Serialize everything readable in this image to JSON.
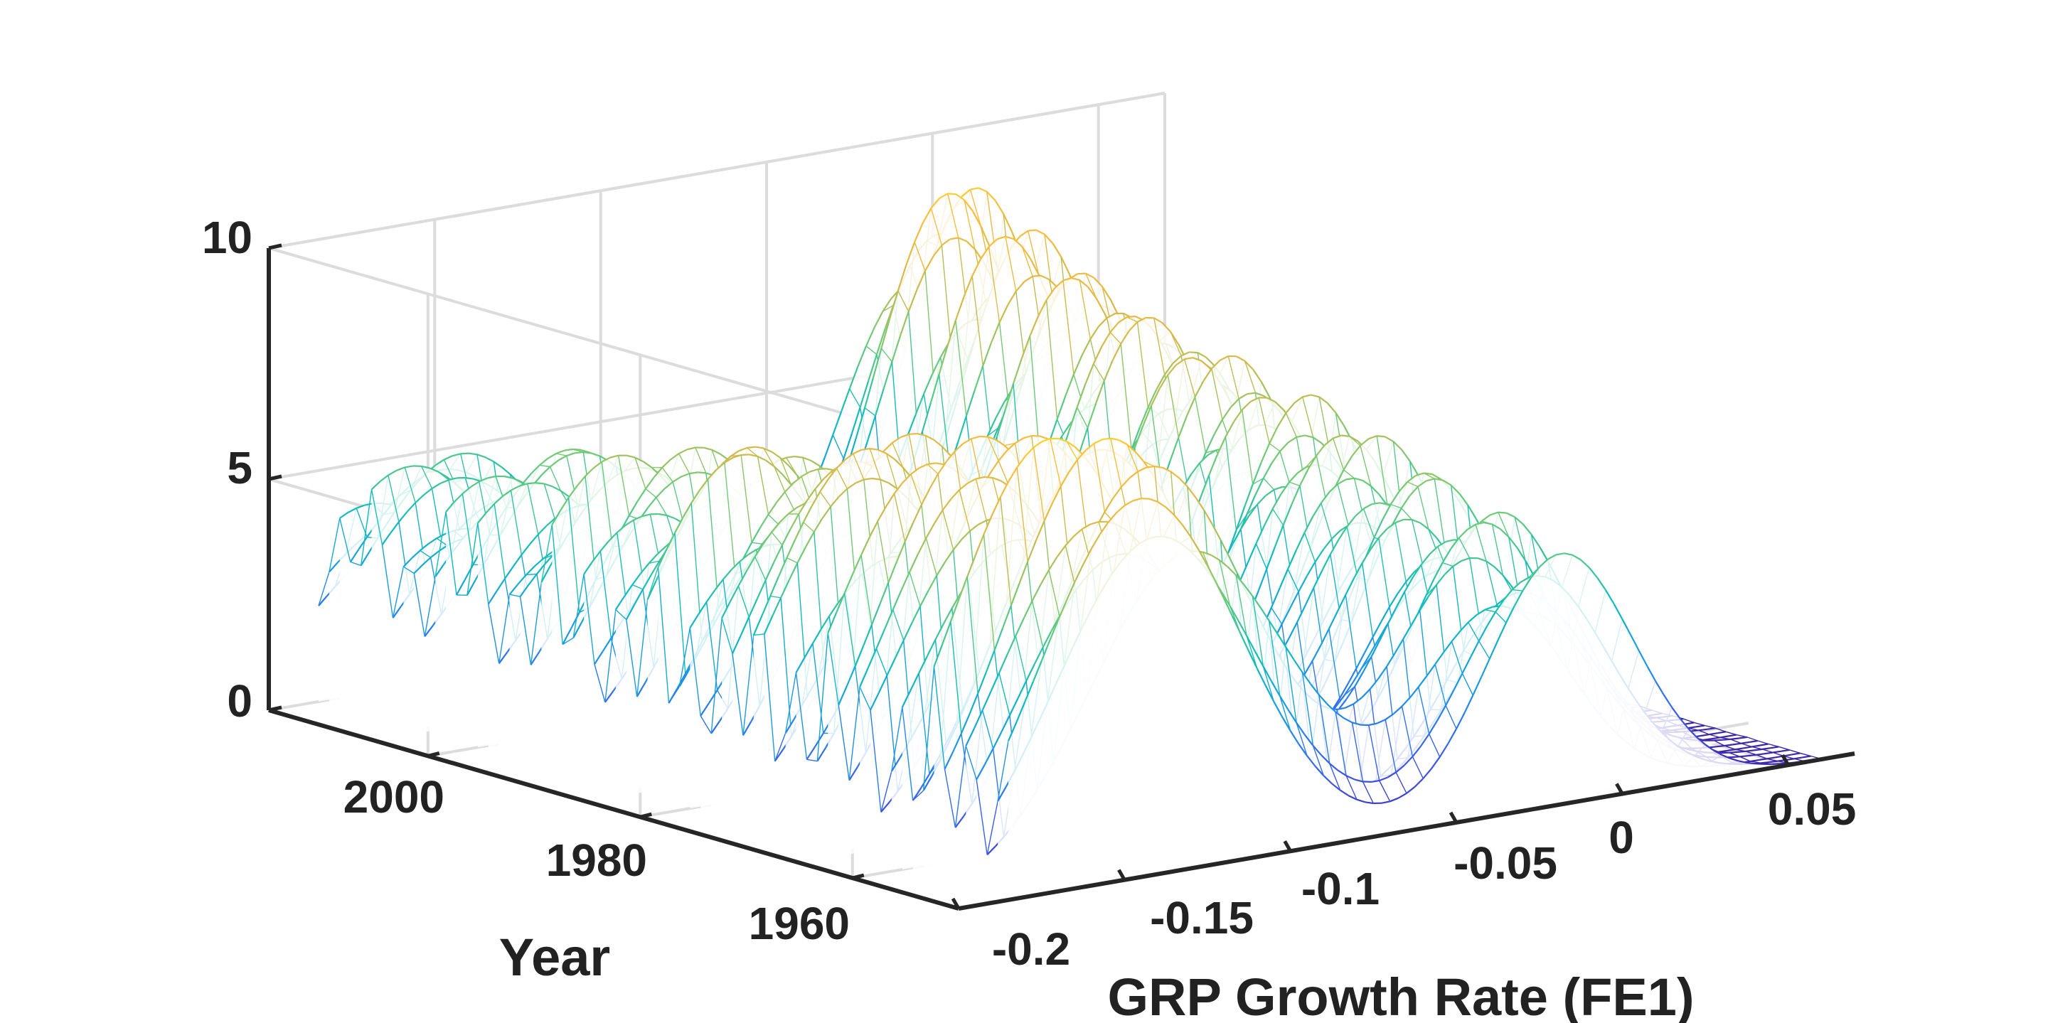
{
  "chart_data": {
    "type": "surface-3d-mesh",
    "title": "",
    "xlabel": "GRP Growth Rate (FE1)",
    "ylabel": "Year",
    "zlabel": "",
    "x_ticks": [
      "-0.2",
      "-0.15",
      "-0.1",
      "-0.05",
      "0",
      "0.05"
    ],
    "x_tick_values": [
      -0.2,
      -0.15,
      -0.1,
      -0.05,
      0,
      0.05
    ],
    "y_ticks": [
      "1960",
      "1980",
      "2000"
    ],
    "y_tick_values": [
      1960,
      1980,
      2000
    ],
    "z_ticks": [
      "0",
      "5",
      "10"
    ],
    "z_tick_values": [
      0,
      5,
      10
    ],
    "xlim": [
      -0.2,
      0.07
    ],
    "ylim": [
      1950,
      2015
    ],
    "zlim": [
      0,
      10
    ],
    "grid": true,
    "colormap": "parula",
    "colormap_stops": [
      "#3e26a8",
      "#3c5af0",
      "#1a98e5",
      "#12beb9",
      "#6acb79",
      "#d2ba4b",
      "#fdbd3c",
      "#f9fb0e"
    ],
    "series_description": "Annual kernel density estimates of GRP growth rate, one curve per year from 1950 to 2015; two main ridges near -0.15 and -0.03 with peak density about 9.8",
    "surface_params": {
      "year_start": 1950,
      "year_end": 2015,
      "mode1": {
        "center_start": -0.135,
        "center_end": -0.165,
        "width": 0.03,
        "peak_start": 9.6,
        "peak_end": 5.0
      },
      "mode2": {
        "center_start": -0.025,
        "center_end": 0.0,
        "width": 0.022,
        "peak_start": 5.5,
        "peak_end": 9.2
      }
    }
  },
  "colors": {
    "axis": "#262626",
    "grid": "#dcdcdc",
    "text": "#222222",
    "background": "#ffffff"
  }
}
